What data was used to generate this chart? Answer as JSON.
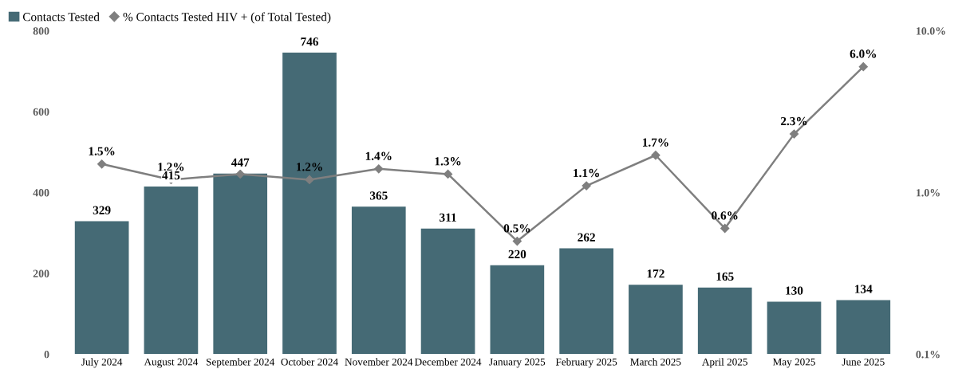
{
  "chart_data": {
    "type": "bar",
    "categories": [
      "July 2024",
      "August 2024",
      "September 2024",
      "October 2024",
      "November 2024",
      "December 2024",
      "January 2025",
      "February 2025",
      "March 2025",
      "April 2025",
      "May 2025",
      "June 2025"
    ],
    "series": [
      {
        "name": "Contacts Tested",
        "color": "#456a75",
        "values": [
          329,
          415,
          447,
          746,
          365,
          311,
          220,
          262,
          172,
          165,
          130,
          134
        ]
      },
      {
        "name": "% Contacts Tested HIV + (of Total Tested)",
        "type": "line",
        "axis": "y2",
        "color": "#7f7f7f",
        "marker": "diamond",
        "values": [
          1.5,
          1.2,
          1.3,
          1.2,
          1.4,
          1.3,
          0.5,
          1.1,
          1.7,
          0.6,
          2.3,
          6.0
        ],
        "value_labels": [
          "1.5%",
          "1.2%",
          null,
          "1.2%",
          "1.4%",
          "1.3%",
          "0.5%",
          "1.1%",
          "1.7%",
          "0.6%",
          "2.3%",
          "6.0%"
        ]
      }
    ],
    "data_labels": true,
    "ylim": [
      0,
      800
    ],
    "yticks": [
      0,
      200,
      400,
      600,
      800
    ],
    "log": "y2",
    "y2lim": [
      0.1,
      10
    ],
    "y2ticks": [
      {
        "value": 0.1,
        "label": "0.1%"
      },
      {
        "value": 1,
        "label": "1.0%"
      },
      {
        "value": 10,
        "label": "10.0%"
      }
    ],
    "grid": false,
    "legend": "top left"
  }
}
